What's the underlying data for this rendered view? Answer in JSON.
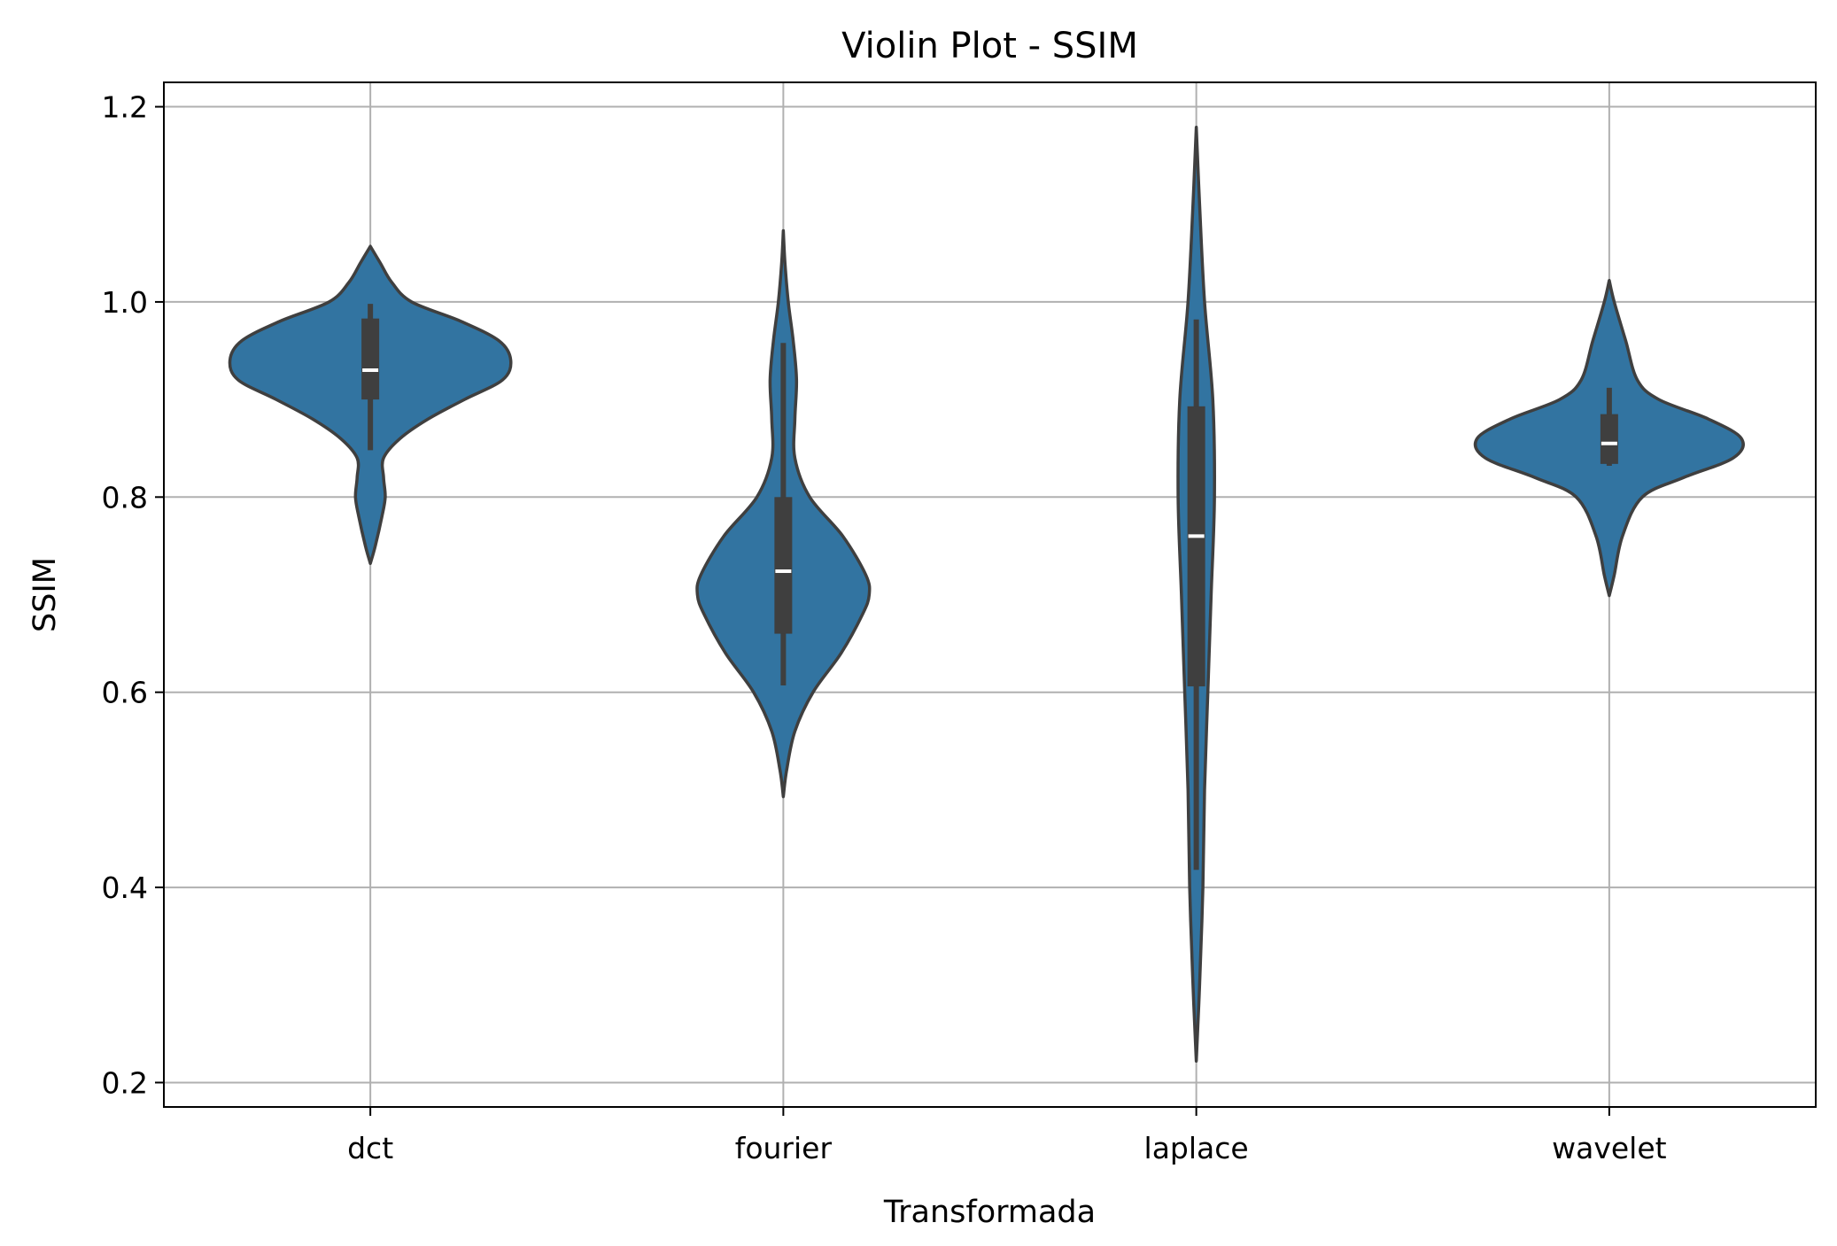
{
  "chart_data": {
    "type": "violin",
    "title": "Violin Plot - SSIM",
    "xlabel": "Transformada",
    "ylabel": "SSIM",
    "categories": [
      "dct",
      "fourier",
      "laplace",
      "wavelet"
    ],
    "ylim": [
      0.175,
      1.225
    ],
    "yticks": [
      0.2,
      0.4,
      0.6,
      0.8,
      1.0,
      1.2
    ],
    "ytick_labels": [
      "0.2",
      "0.4",
      "0.6",
      "0.8",
      "1.0",
      "1.2"
    ],
    "grid": true,
    "colors": {
      "violin_fill": "#3274a1",
      "violin_edge": "#3f3f3f",
      "box": "#3f3f3f",
      "median": "#ffffff",
      "grid": "#b0b0b0"
    },
    "violins": [
      {
        "category": "dct",
        "density": [
          [
            0.732,
            0
          ],
          [
            0.75,
            0.03
          ],
          [
            0.78,
            0.07
          ],
          [
            0.8,
            0.09
          ],
          [
            0.82,
            0.08
          ],
          [
            0.84,
            0.08
          ],
          [
            0.86,
            0.18
          ],
          [
            0.88,
            0.35
          ],
          [
            0.9,
            0.57
          ],
          [
            0.92,
            0.8
          ],
          [
            0.94,
            0.85
          ],
          [
            0.96,
            0.78
          ],
          [
            0.98,
            0.55
          ],
          [
            1.0,
            0.25
          ],
          [
            1.02,
            0.13
          ],
          [
            1.04,
            0.06
          ],
          [
            1.057,
            0
          ]
        ],
        "whisker": [
          0.848,
          0.998
        ],
        "q1": 0.9,
        "q3": 0.983,
        "median": 0.93
      },
      {
        "category": "fourier",
        "density": [
          [
            0.493,
            0
          ],
          [
            0.52,
            0.02
          ],
          [
            0.56,
            0.07
          ],
          [
            0.6,
            0.18
          ],
          [
            0.64,
            0.35
          ],
          [
            0.68,
            0.48
          ],
          [
            0.7,
            0.52
          ],
          [
            0.72,
            0.5
          ],
          [
            0.76,
            0.36
          ],
          [
            0.8,
            0.16
          ],
          [
            0.84,
            0.07
          ],
          [
            0.88,
            0.07
          ],
          [
            0.92,
            0.08
          ],
          [
            0.96,
            0.06
          ],
          [
            1.0,
            0.03
          ],
          [
            1.04,
            0.01
          ],
          [
            1.073,
            0
          ]
        ],
        "whisker": [
          0.607,
          0.958
        ],
        "q1": 0.66,
        "q3": 0.8,
        "median": 0.724
      },
      {
        "category": "laplace",
        "density": [
          [
            0.222,
            0
          ],
          [
            0.3,
            0.02
          ],
          [
            0.4,
            0.04
          ],
          [
            0.5,
            0.05
          ],
          [
            0.6,
            0.07
          ],
          [
            0.7,
            0.09
          ],
          [
            0.8,
            0.11
          ],
          [
            0.9,
            0.1
          ],
          [
            1.0,
            0.05
          ],
          [
            1.1,
            0.02
          ],
          [
            1.179,
            0
          ]
        ],
        "whisker": [
          0.418,
          0.982
        ],
        "q1": 0.606,
        "q3": 0.893,
        "median": 0.76
      },
      {
        "category": "wavelet",
        "density": [
          [
            0.699,
            0
          ],
          [
            0.72,
            0.03
          ],
          [
            0.76,
            0.08
          ],
          [
            0.8,
            0.2
          ],
          [
            0.82,
            0.45
          ],
          [
            0.84,
            0.75
          ],
          [
            0.86,
            0.8
          ],
          [
            0.88,
            0.6
          ],
          [
            0.9,
            0.3
          ],
          [
            0.92,
            0.17
          ],
          [
            0.96,
            0.1
          ],
          [
            1.0,
            0.03
          ],
          [
            1.022,
            0
          ]
        ],
        "whisker": [
          0.832,
          0.912
        ],
        "q1": 0.834,
        "q3": 0.885,
        "median": 0.855
      }
    ]
  }
}
